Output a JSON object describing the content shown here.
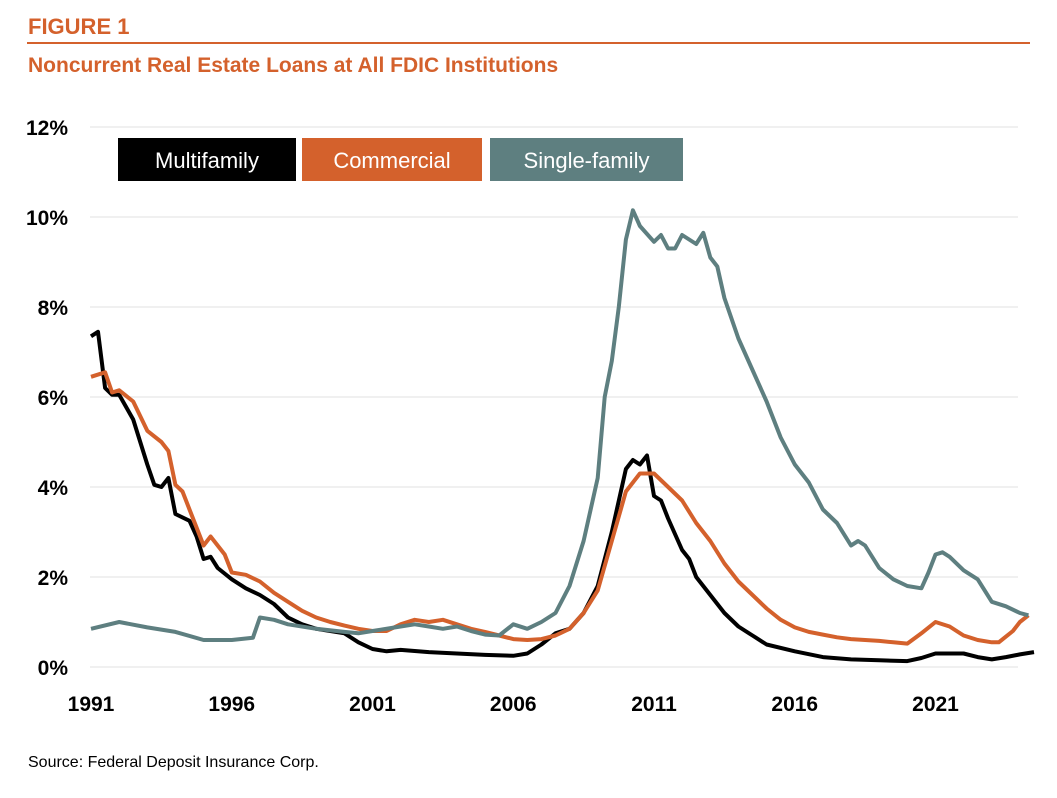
{
  "figure_label": "FIGURE 1",
  "source": "Source: Federal Deposit Insurance Corp.",
  "colors": {
    "accent": "#d4612c",
    "multifamily": "#000000",
    "commercial": "#d4612c",
    "single_family": "#5e7f80"
  },
  "chart_data": {
    "type": "line",
    "title": "Noncurrent Real Estate Loans at All FDIC Institutions",
    "xlabel": "",
    "ylabel": "",
    "xlim": [
      1991,
      2024.5
    ],
    "ylim": [
      0,
      12
    ],
    "x_ticks": [
      1991,
      1996,
      2001,
      2006,
      2011,
      2016,
      2021
    ],
    "x_tick_labels": [
      "1991",
      "1996",
      "2001",
      "2006",
      "2011",
      "2016",
      "2021"
    ],
    "y_ticks": [
      0,
      2,
      4,
      6,
      8,
      10,
      12
    ],
    "y_tick_labels": [
      "0%",
      "2%",
      "4%",
      "6%",
      "8%",
      "10%",
      "12%"
    ],
    "grid": "horizontal",
    "legend": "top-left",
    "series": [
      {
        "name": "Multifamily",
        "color": "#000000",
        "x": [
          1991,
          1991.25,
          1991.5,
          1991.75,
          1992,
          1992.5,
          1993,
          1993.25,
          1993.5,
          1993.75,
          1994,
          1994.5,
          1994.75,
          1995,
          1995.25,
          1995.5,
          1996,
          1996.5,
          1997,
          1997.5,
          1998,
          1998.5,
          1999,
          1999.5,
          2000,
          2000.5,
          2001,
          2001.5,
          2002,
          2003,
          2004,
          2005,
          2006,
          2006.5,
          2007,
          2007.5,
          2008,
          2008.5,
          2009,
          2009.5,
          2010,
          2010.25,
          2010.5,
          2010.75,
          2011,
          2011.25,
          2011.5,
          2012,
          2012.25,
          2012.5,
          2013,
          2013.5,
          2014,
          2014.5,
          2015,
          2016,
          2017,
          2018,
          2019,
          2020,
          2020.5,
          2021,
          2021.5,
          2022,
          2022.5,
          2023,
          2023.5,
          2024,
          2024.5
        ],
        "y": [
          7.35,
          7.45,
          6.2,
          6.05,
          6.05,
          5.5,
          4.5,
          4.05,
          4.0,
          4.2,
          3.4,
          3.25,
          2.9,
          2.4,
          2.45,
          2.2,
          1.95,
          1.75,
          1.6,
          1.4,
          1.1,
          0.95,
          0.85,
          0.8,
          0.75,
          0.55,
          0.4,
          0.35,
          0.38,
          0.33,
          0.3,
          0.27,
          0.25,
          0.3,
          0.5,
          0.75,
          0.85,
          1.2,
          1.8,
          3.0,
          4.4,
          4.6,
          4.5,
          4.7,
          3.8,
          3.7,
          3.3,
          2.6,
          2.4,
          2.0,
          1.6,
          1.2,
          0.9,
          0.7,
          0.5,
          0.35,
          0.22,
          0.17,
          0.15,
          0.13,
          0.2,
          0.3,
          0.3,
          0.3,
          0.22,
          0.17,
          0.22,
          0.28,
          0.33
        ]
      },
      {
        "name": "Commercial",
        "color": "#d4612c",
        "x": [
          1991,
          1991.5,
          1991.75,
          1992,
          1992.5,
          1993,
          1993.5,
          1993.75,
          1994,
          1994.25,
          1994.5,
          1995,
          1995.25,
          1995.75,
          1996,
          1996.5,
          1997,
          1997.5,
          1998,
          1998.5,
          1999,
          1999.5,
          2000,
          2000.5,
          2001,
          2001.5,
          2002,
          2002.5,
          2003,
          2003.5,
          2004,
          2004.5,
          2005,
          2005.5,
          2006,
          2006.5,
          2007,
          2007.5,
          2008,
          2008.5,
          2009,
          2009.5,
          2010,
          2010.5,
          2011,
          2011.5,
          2012,
          2012.5,
          2013,
          2013.5,
          2014,
          2014.5,
          2015,
          2015.5,
          2016,
          2016.5,
          2017,
          2017.5,
          2018,
          2018.5,
          2019,
          2019.5,
          2020,
          2020.5,
          2021,
          2021.5,
          2022,
          2022.5,
          2023,
          2023.25,
          2023.75,
          2024,
          2024.3
        ],
        "y": [
          6.45,
          6.55,
          6.1,
          6.15,
          5.9,
          5.25,
          5.0,
          4.8,
          4.05,
          3.9,
          3.5,
          2.7,
          2.9,
          2.5,
          2.1,
          2.05,
          1.9,
          1.65,
          1.45,
          1.25,
          1.1,
          1.0,
          0.92,
          0.85,
          0.8,
          0.8,
          0.95,
          1.05,
          1.0,
          1.05,
          0.95,
          0.85,
          0.78,
          0.7,
          0.62,
          0.6,
          0.62,
          0.7,
          0.85,
          1.2,
          1.7,
          2.8,
          3.9,
          4.3,
          4.3,
          4.0,
          3.7,
          3.2,
          2.8,
          2.3,
          1.9,
          1.6,
          1.3,
          1.05,
          0.88,
          0.78,
          0.72,
          0.66,
          0.62,
          0.6,
          0.58,
          0.55,
          0.52,
          0.75,
          1.0,
          0.9,
          0.7,
          0.6,
          0.55,
          0.55,
          0.8,
          1.0,
          1.15
        ]
      },
      {
        "name": "Single-family",
        "color": "#5e7f80",
        "x": [
          1991,
          1992,
          1993,
          1994,
          1995,
          1996,
          1996.75,
          1997,
          1997.5,
          1998,
          1999,
          2000,
          2000.5,
          2001,
          2002,
          2002.5,
          2003,
          2003.5,
          2004,
          2004.5,
          2005,
          2005.5,
          2006,
          2006.5,
          2007,
          2007.5,
          2008,
          2008.5,
          2009,
          2009.25,
          2009.5,
          2009.75,
          2010,
          2010.25,
          2010.5,
          2011,
          2011.25,
          2011.5,
          2011.75,
          2012,
          2012.5,
          2012.75,
          2013,
          2013.25,
          2013.5,
          2014,
          2014.5,
          2015,
          2015.5,
          2016,
          2016.5,
          2017,
          2017.5,
          2018,
          2018.25,
          2018.5,
          2019,
          2019.5,
          2020,
          2020.5,
          2020.75,
          2021,
          2021.25,
          2021.5,
          2022,
          2022.5,
          2023,
          2023.5,
          2024,
          2024.3
        ],
        "y": [
          0.85,
          1.0,
          0.88,
          0.78,
          0.6,
          0.6,
          0.65,
          1.1,
          1.05,
          0.95,
          0.85,
          0.78,
          0.75,
          0.8,
          0.9,
          0.95,
          0.9,
          0.85,
          0.9,
          0.8,
          0.72,
          0.7,
          0.95,
          0.85,
          1.0,
          1.2,
          1.8,
          2.8,
          4.2,
          6.0,
          6.8,
          8.0,
          9.5,
          10.15,
          9.8,
          9.45,
          9.6,
          9.3,
          9.3,
          9.6,
          9.4,
          9.65,
          9.1,
          8.9,
          8.2,
          7.3,
          6.6,
          5.9,
          5.1,
          4.5,
          4.1,
          3.5,
          3.2,
          2.7,
          2.8,
          2.7,
          2.2,
          1.95,
          1.8,
          1.75,
          2.1,
          2.5,
          2.55,
          2.45,
          2.15,
          1.95,
          1.45,
          1.35,
          1.2,
          1.15
        ]
      }
    ]
  }
}
